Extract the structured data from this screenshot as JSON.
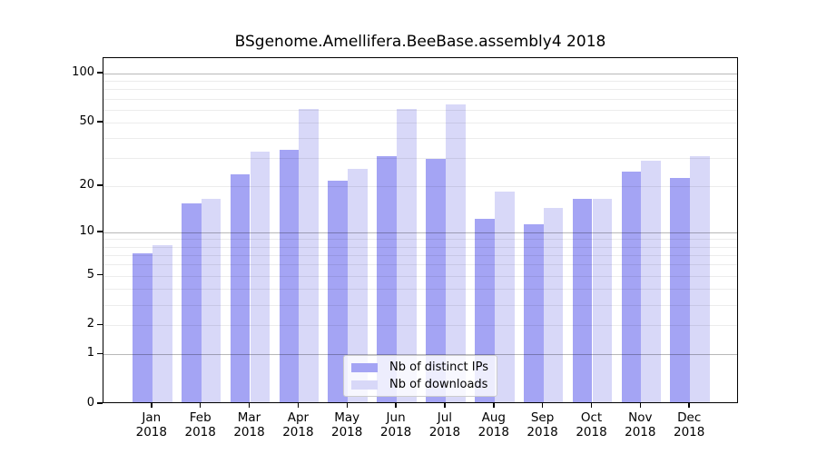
{
  "chart_data": {
    "type": "bar",
    "title": "BSgenome.Amellifera.BeeBase.assembly4 2018",
    "categories": [
      "Jan",
      "Feb",
      "Mar",
      "Apr",
      "May",
      "Jun",
      "Jul",
      "Aug",
      "Sep",
      "Oct",
      "Nov",
      "Dec"
    ],
    "year_label": "2018",
    "series": [
      {
        "name": "Nb of distinct IPs",
        "color": "#a4a4f4",
        "values": [
          7,
          15,
          23,
          33,
          21,
          30,
          29,
          12,
          11,
          16,
          24,
          22
        ]
      },
      {
        "name": "Nb of downloads",
        "color": "#d8d8f8",
        "values": [
          8,
          16,
          32,
          59,
          25,
          59,
          63,
          18,
          14,
          16,
          28,
          30
        ]
      }
    ],
    "yscale": "log1p",
    "ylim": [
      0,
      124
    ],
    "yticks": [
      100,
      50,
      20,
      10,
      5,
      2,
      1,
      0
    ],
    "grid": true,
    "grid_minor_levels": [
      2,
      3,
      4,
      5,
      6,
      7,
      8,
      9,
      20,
      30,
      40,
      50,
      60,
      70,
      80,
      90
    ],
    "grid_major_levels": [
      1,
      10,
      100
    ],
    "legend_position": "lower center"
  }
}
